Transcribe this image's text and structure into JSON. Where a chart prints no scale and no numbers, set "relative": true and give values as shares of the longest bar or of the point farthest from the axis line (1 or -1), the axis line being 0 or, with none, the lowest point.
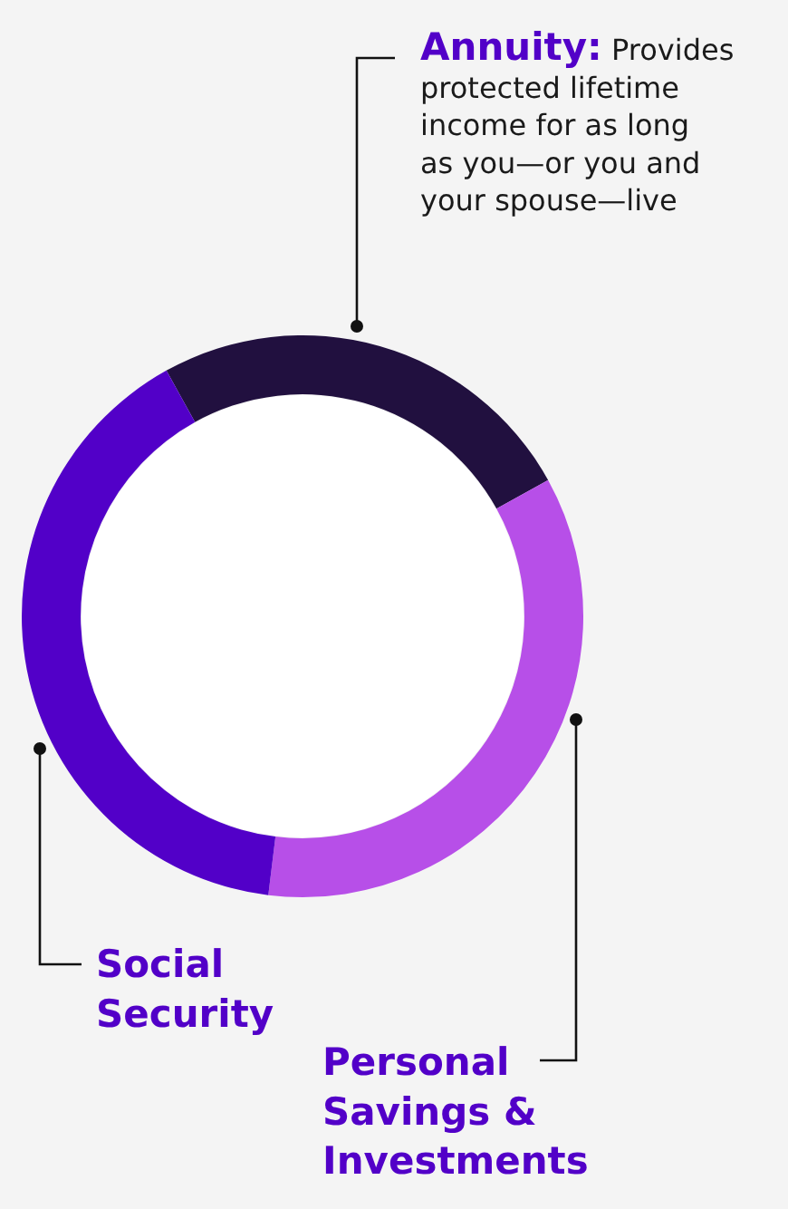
{
  "chart_data": {
    "type": "donut",
    "relative": true,
    "categories": [
      "Annuity",
      "Personal Savings & Investments",
      "Social Security"
    ],
    "values": [
      25,
      35,
      40
    ],
    "colors": [
      "#21103f",
      "#b74fe8",
      "#5200c8"
    ],
    "annotations": [
      ": Provides protected lifetime income for as long as you—or you and your spouse—live"
    ],
    "legend": false
  }
}
